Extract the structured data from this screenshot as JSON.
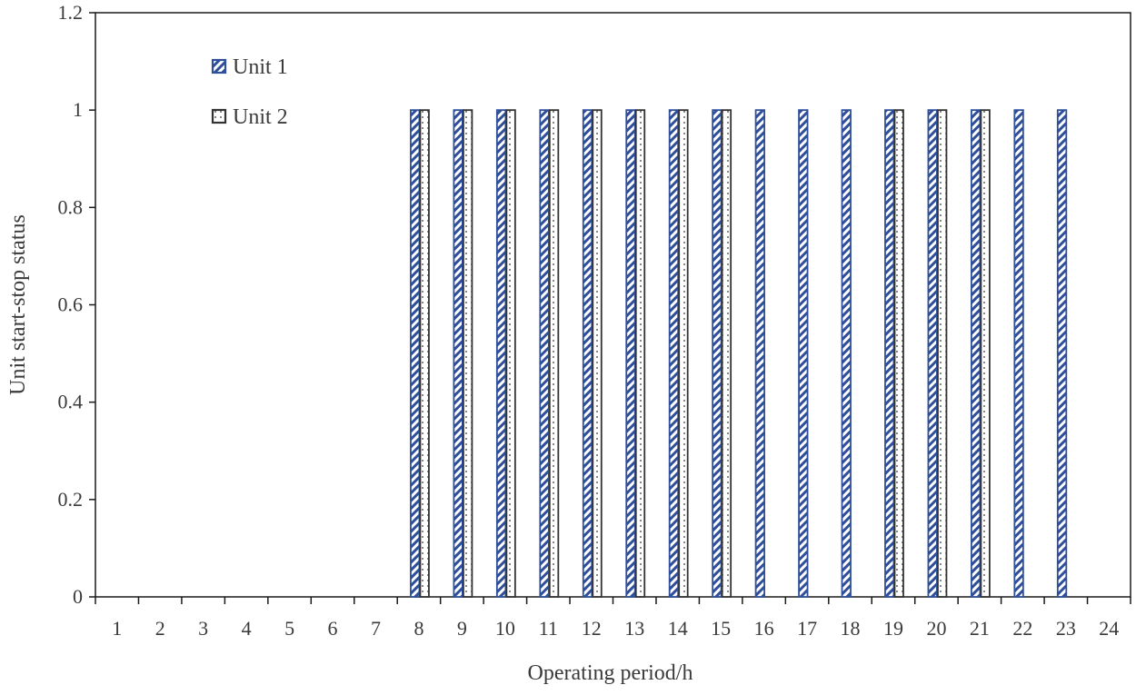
{
  "chart_data": {
    "type": "bar",
    "xlabel": "Operating period/h",
    "ylabel": "Unit start-stop status",
    "ylim": [
      0,
      1.2
    ],
    "y_ticks": [
      "0",
      "0.2",
      "0.4",
      "0.6",
      "0.8",
      "1",
      "1.2"
    ],
    "categories": [
      "1",
      "2",
      "3",
      "4",
      "5",
      "6",
      "7",
      "8",
      "9",
      "10",
      "11",
      "12",
      "13",
      "14",
      "15",
      "16",
      "17",
      "18",
      "19",
      "20",
      "21",
      "22",
      "23",
      "24"
    ],
    "series": [
      {
        "name": "Unit 1",
        "color": "#2f4f9a",
        "pattern": "diagonal-hatch",
        "values": [
          0,
          0,
          0,
          0,
          0,
          0,
          0,
          1,
          1,
          1,
          1,
          1,
          1,
          1,
          1,
          1,
          1,
          1,
          1,
          1,
          1,
          1,
          1,
          0
        ]
      },
      {
        "name": "Unit 2",
        "color": "#333333",
        "pattern": "dotted",
        "values": [
          0,
          0,
          0,
          0,
          0,
          0,
          0,
          1,
          1,
          1,
          1,
          1,
          1,
          1,
          1,
          0,
          0,
          0,
          1,
          1,
          1,
          0,
          0,
          0
        ]
      }
    ],
    "legend_position": "top-left",
    "grid": false
  }
}
